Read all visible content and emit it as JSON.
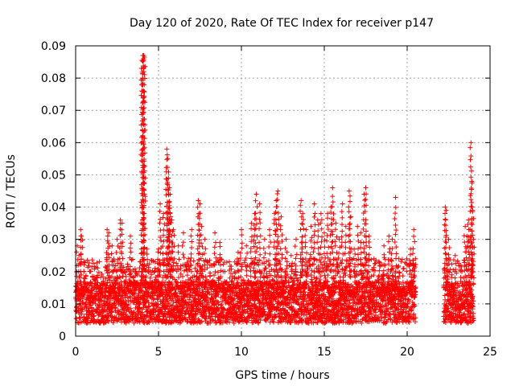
{
  "chart_data": {
    "type": "scatter",
    "title": "Day 120 of 2020, Rate Of TEC Index for receiver p147",
    "xlabel": "GPS time / hours",
    "ylabel": "ROTI / TECUs",
    "xlim": [
      0,
      25
    ],
    "ylim": [
      0,
      0.09
    ],
    "xticks": [
      0,
      5,
      10,
      15,
      20,
      25
    ],
    "xtick_labels": [
      "0",
      "5",
      "10",
      "15",
      "20",
      "25"
    ],
    "yticks": [
      0,
      0.01,
      0.02,
      0.03,
      0.04,
      0.05,
      0.06,
      0.07,
      0.08,
      0.09
    ],
    "ytick_labels": [
      "0",
      "0.01",
      "0.02",
      "0.03",
      "0.04",
      "0.05",
      "0.06",
      "0.07",
      "0.08",
      "0.09"
    ],
    "grid": true,
    "marker": "plus",
    "color": "#ff0000",
    "series": [
      {
        "name": "ROTI",
        "points": [
          [
            0.0,
            0.012
          ],
          [
            0.1,
            0.028
          ],
          [
            0.2,
            0.025
          ],
          [
            0.3,
            0.033
          ],
          [
            0.35,
            0.031
          ],
          [
            0.5,
            0.018
          ],
          [
            0.7,
            0.015
          ],
          [
            0.9,
            0.012
          ],
          [
            1.2,
            0.01
          ],
          [
            1.5,
            0.012
          ],
          [
            1.8,
            0.015
          ],
          [
            1.9,
            0.033
          ],
          [
            2.0,
            0.032
          ],
          [
            2.2,
            0.028
          ],
          [
            2.5,
            0.03
          ],
          [
            2.7,
            0.036
          ],
          [
            2.8,
            0.035
          ],
          [
            3.0,
            0.02
          ],
          [
            3.3,
            0.031
          ],
          [
            3.5,
            0.013
          ],
          [
            3.8,
            0.012
          ],
          [
            4.05,
            0.087
          ],
          [
            4.1,
            0.086
          ],
          [
            4.15,
            0.0865
          ],
          [
            4.3,
            0.027
          ],
          [
            4.5,
            0.018
          ],
          [
            4.8,
            0.023
          ],
          [
            5.0,
            0.027
          ],
          [
            5.1,
            0.041
          ],
          [
            5.3,
            0.038
          ],
          [
            5.5,
            0.058
          ],
          [
            5.55,
            0.055
          ],
          [
            5.6,
            0.049
          ],
          [
            5.65,
            0.046
          ],
          [
            5.7,
            0.044
          ],
          [
            5.8,
            0.036
          ],
          [
            5.9,
            0.033
          ],
          [
            6.2,
            0.028
          ],
          [
            6.5,
            0.032
          ],
          [
            6.8,
            0.024
          ],
          [
            7.0,
            0.033
          ],
          [
            7.4,
            0.042
          ],
          [
            7.5,
            0.041
          ],
          [
            7.6,
            0.034
          ],
          [
            7.8,
            0.03
          ],
          [
            8.1,
            0.022
          ],
          [
            8.4,
            0.032
          ],
          [
            8.7,
            0.029
          ],
          [
            9.0,
            0.02
          ],
          [
            9.3,
            0.018
          ],
          [
            9.6,
            0.023
          ],
          [
            9.8,
            0.026
          ],
          [
            10.0,
            0.033
          ],
          [
            10.3,
            0.028
          ],
          [
            10.6,
            0.035
          ],
          [
            10.8,
            0.038
          ],
          [
            10.9,
            0.044
          ],
          [
            11.1,
            0.041
          ],
          [
            11.4,
            0.03
          ],
          [
            11.7,
            0.033
          ],
          [
            12.0,
            0.038
          ],
          [
            12.1,
            0.042
          ],
          [
            12.2,
            0.045
          ],
          [
            12.4,
            0.037
          ],
          [
            12.7,
            0.03
          ],
          [
            13.0,
            0.025
          ],
          [
            13.3,
            0.03
          ],
          [
            13.6,
            0.042
          ],
          [
            13.7,
            0.038
          ],
          [
            13.9,
            0.033
          ],
          [
            14.2,
            0.034
          ],
          [
            14.4,
            0.041
          ],
          [
            14.6,
            0.036
          ],
          [
            14.8,
            0.038
          ],
          [
            15.0,
            0.032
          ],
          [
            15.2,
            0.038
          ],
          [
            15.4,
            0.04
          ],
          [
            15.5,
            0.046
          ],
          [
            15.7,
            0.035
          ],
          [
            15.9,
            0.03
          ],
          [
            16.1,
            0.041
          ],
          [
            16.3,
            0.034
          ],
          [
            16.5,
            0.045
          ],
          [
            16.6,
            0.037
          ],
          [
            16.8,
            0.027
          ],
          [
            17.0,
            0.034
          ],
          [
            17.2,
            0.032
          ],
          [
            17.4,
            0.044
          ],
          [
            17.5,
            0.046
          ],
          [
            17.7,
            0.031
          ],
          [
            18.0,
            0.024
          ],
          [
            18.3,
            0.023
          ],
          [
            18.6,
            0.028
          ],
          [
            18.9,
            0.031
          ],
          [
            19.1,
            0.03
          ],
          [
            19.3,
            0.043
          ],
          [
            19.5,
            0.024
          ],
          [
            19.8,
            0.021
          ],
          [
            20.0,
            0.022
          ],
          [
            20.2,
            0.027
          ],
          [
            20.4,
            0.033
          ],
          [
            20.5,
            0.024
          ],
          [
            22.3,
            0.04
          ],
          [
            22.35,
            0.039
          ],
          [
            22.5,
            0.03
          ],
          [
            22.7,
            0.019
          ],
          [
            22.9,
            0.025
          ],
          [
            23.2,
            0.022
          ],
          [
            23.5,
            0.034
          ],
          [
            23.6,
            0.031
          ],
          [
            23.7,
            0.036
          ],
          [
            23.8,
            0.03
          ],
          [
            23.85,
            0.06
          ],
          [
            23.9,
            0.048
          ],
          [
            23.95,
            0.039
          ],
          [
            24.0,
            0.03
          ],
          [
            0.5,
            0.02
          ],
          [
            1.0,
            0.011
          ],
          [
            4.0,
            0.0855
          ],
          [
            4.1,
            0.087
          ]
        ]
      }
    ],
    "band_note": "Dense baseline noise ~0.005-0.02 across 0-20.5 h and 22.2-24 h; gap 20.6-22.2 h"
  }
}
